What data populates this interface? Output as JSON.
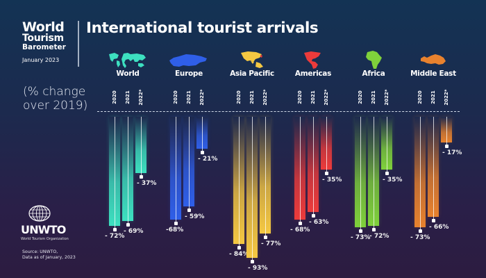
{
  "brand": {
    "line1": "World",
    "line2": "Tourism",
    "line3": "Barometer",
    "date": "January 2023"
  },
  "title": "International tourist arrivals",
  "subtitle_line1": "(% change",
  "subtitle_line2": "over 2019)",
  "logo": {
    "name": "UNWTO",
    "org": "World Tourism Organization",
    "icon": "globe-icon"
  },
  "source_line1": "Source: UNWTO,",
  "source_line2": "Data as of January, 2023",
  "chart_data": {
    "type": "bar",
    "title": "International tourist arrivals",
    "subtitle": "(% change over 2019)",
    "categories": [
      "World",
      "Europe",
      "Asia Pacific",
      "Americas",
      "Africa",
      "Middle East"
    ],
    "years": [
      "2020",
      "2021",
      "2022*"
    ],
    "series": [
      {
        "name": "2020",
        "values": [
          -72,
          -68,
          -84,
          -68,
          -73,
          -73
        ]
      },
      {
        "name": "2021",
        "values": [
          -69,
          -59,
          -93,
          -63,
          -72,
          -66
        ]
      },
      {
        "name": "2022*",
        "values": [
          -37,
          -21,
          -77,
          -35,
          -35,
          -17
        ]
      }
    ],
    "labels": [
      [
        "- 72%",
        "- 69%",
        "- 37%"
      ],
      [
        "-68%",
        "- 59%",
        "- 21%"
      ],
      [
        "- 84%",
        "- 93%",
        "- 77%"
      ],
      [
        "- 68%",
        "- 63%",
        "- 35%"
      ],
      [
        "- 73%",
        "- 72%",
        "- 35%"
      ],
      [
        "- 73%",
        "- 66%",
        "- 17%"
      ]
    ],
    "colors": {
      "World": "#3de0c0",
      "Europe": "#2f5fe8",
      "Asia Pacific": "#f5c842",
      "Americas": "#ec3b3b",
      "Africa": "#7fd13b",
      "Middle East": "#e8822e"
    },
    "xlabel": "",
    "ylabel": "% change over 2019",
    "ylim": [
      -100,
      0
    ],
    "grid": false,
    "legend": "none (region headers with map icons above columns)"
  },
  "regions": [
    {
      "name": "World",
      "icon": "world-map-icon",
      "color": "#3de0c0"
    },
    {
      "name": "Europe",
      "icon": "europe-map-icon",
      "color": "#2f5fe8"
    },
    {
      "name": "Asia Pacific",
      "icon": "asia-pacific-map-icon",
      "color": "#f5c842"
    },
    {
      "name": "Americas",
      "icon": "americas-map-icon",
      "color": "#ec3b3b"
    },
    {
      "name": "Africa",
      "icon": "africa-map-icon",
      "color": "#7fd13b"
    },
    {
      "name": "Middle East",
      "icon": "middle-east-map-icon",
      "color": "#e8822e"
    }
  ]
}
